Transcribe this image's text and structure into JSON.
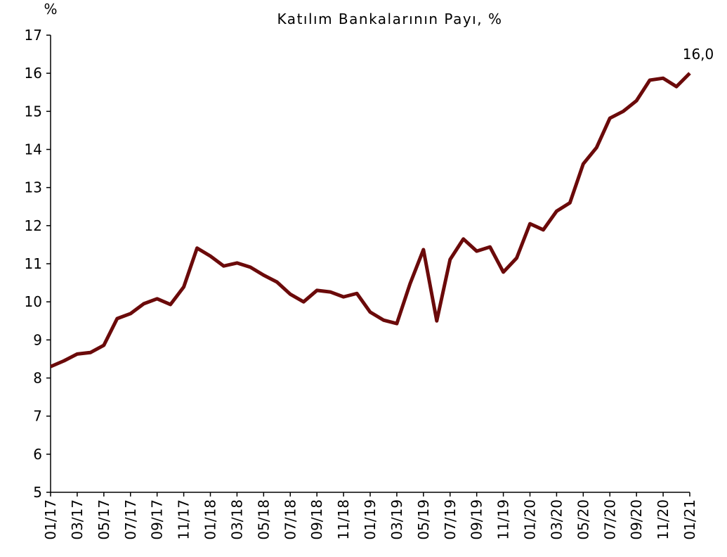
{
  "chart_data": {
    "type": "line",
    "title": "Katılım Bankalarının Payı, %",
    "y_axis_label": "%",
    "categories": [
      "01/17",
      null,
      "03/17",
      null,
      "05/17",
      null,
      "07/17",
      null,
      "09/17",
      null,
      "11/17",
      null,
      "01/18",
      null,
      "03/18",
      null,
      "05/18",
      null,
      "07/18",
      null,
      "09/18",
      null,
      "11/18",
      null,
      "01/19",
      null,
      "03/19",
      null,
      "05/19",
      null,
      "07/19",
      null,
      "09/19",
      null,
      "11/19",
      null,
      "01/20",
      null,
      "03/20",
      null,
      "05/20",
      null,
      "07/20",
      null,
      "09/20",
      null,
      "11/20",
      null,
      "01/21"
    ],
    "series": [
      {
        "name": "Katılım Bankalarının Payı",
        "color": "#6b0a0a",
        "values": [
          8.3,
          8.45,
          8.63,
          8.67,
          8.86,
          9.56,
          9.69,
          9.95,
          10.08,
          9.93,
          10.39,
          11.41,
          11.2,
          10.94,
          11.02,
          10.91,
          10.7,
          10.52,
          10.2,
          10.0,
          10.3,
          10.26,
          10.13,
          10.22,
          9.73,
          9.52,
          9.43,
          10.48,
          11.37,
          9.5,
          11.11,
          11.65,
          11.33,
          11.44,
          10.78,
          11.15,
          12.05,
          11.89,
          12.38,
          12.6,
          13.62,
          14.05,
          14.82,
          15.0,
          15.28,
          15.82,
          15.87,
          15.65,
          16.0
        ],
        "value_labels": [
          null,
          null,
          null,
          null,
          null,
          null,
          null,
          null,
          null,
          null,
          null,
          null,
          null,
          null,
          null,
          null,
          null,
          null,
          null,
          null,
          null,
          null,
          null,
          null,
          null,
          null,
          null,
          null,
          null,
          null,
          null,
          null,
          null,
          null,
          null,
          null,
          null,
          null,
          null,
          null,
          null,
          null,
          null,
          null,
          null,
          null,
          null,
          null,
          "16,0"
        ]
      }
    ],
    "ylim": [
      5,
      17
    ],
    "yticks": [
      5,
      6,
      7,
      8,
      9,
      10,
      11,
      12,
      13,
      14,
      15,
      16,
      17
    ],
    "grid": false
  }
}
